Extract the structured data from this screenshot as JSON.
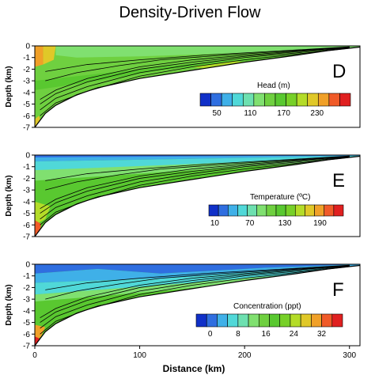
{
  "figure": {
    "title": "Density-Driven Flow"
  },
  "chart_data": [
    {
      "type": "heatmap",
      "panel": "D",
      "variable": "Head (m)",
      "xlabel": "",
      "ylabel": "Depth (km)",
      "xlim": [
        0,
        310
      ],
      "ylim": [
        -7,
        0
      ],
      "yticks": [
        0,
        -1,
        -2,
        -3,
        -4,
        -5,
        -6,
        -7
      ],
      "colorbar": {
        "title": "Head (m)",
        "range": [
          20,
          290
        ],
        "ticks": [
          50,
          110,
          170,
          230
        ],
        "colors": [
          "#1030c8",
          "#2f6ee0",
          "#3fb0e8",
          "#50d8d8",
          "#6de0b0",
          "#80e070",
          "#6fd040",
          "#59c830",
          "#77d028",
          "#b4dc28",
          "#e0c828",
          "#f0a028",
          "#f05a28",
          "#e02020"
        ]
      },
      "bottom_profile": [
        [
          0,
          -7
        ],
        [
          5,
          -6.4
        ],
        [
          10,
          -5.8
        ],
        [
          20,
          -5.1
        ],
        [
          40,
          -4.2
        ],
        [
          60,
          -3.6
        ],
        [
          100,
          -2.8
        ],
        [
          150,
          -2.1
        ],
        [
          200,
          -1.4
        ],
        [
          250,
          -0.8
        ],
        [
          280,
          -0.4
        ],
        [
          310,
          -0.1
        ]
      ],
      "contours": [
        [
          [
            5,
            -6
          ],
          [
            20,
            -4.9
          ],
          [
            50,
            -3.9
          ],
          [
            100,
            -2.6
          ],
          [
            150,
            -1.8
          ],
          [
            200,
            -1.2
          ],
          [
            250,
            -0.7
          ],
          [
            300,
            -0.2
          ]
        ],
        [
          [
            5,
            -5.5
          ],
          [
            20,
            -4.5
          ],
          [
            50,
            -3.5
          ],
          [
            100,
            -2.3
          ],
          [
            150,
            -1.6
          ],
          [
            200,
            -1.0
          ],
          [
            250,
            -0.6
          ],
          [
            300,
            -0.15
          ]
        ],
        [
          [
            5,
            -5.0
          ],
          [
            20,
            -4.1
          ],
          [
            50,
            -3.1
          ],
          [
            100,
            -2.0
          ],
          [
            150,
            -1.4
          ],
          [
            200,
            -0.9
          ],
          [
            250,
            -0.5
          ],
          [
            300,
            -0.12
          ]
        ],
        [
          [
            5,
            -4.6
          ],
          [
            20,
            -3.8
          ],
          [
            50,
            -2.8
          ],
          [
            100,
            -1.8
          ],
          [
            150,
            -1.2
          ],
          [
            200,
            -0.8
          ],
          [
            250,
            -0.45
          ],
          [
            300,
            -0.1
          ]
        ],
        [
          [
            10,
            -3.0
          ],
          [
            40,
            -2.3
          ],
          [
            80,
            -1.7
          ],
          [
            120,
            -1.2
          ],
          [
            180,
            -0.8
          ],
          [
            240,
            -0.45
          ],
          [
            300,
            -0.1
          ]
        ],
        [
          [
            10,
            -2.2
          ],
          [
            50,
            -1.6
          ],
          [
            100,
            -1.2
          ],
          [
            160,
            -0.8
          ],
          [
            230,
            -0.45
          ],
          [
            300,
            -0.08
          ]
        ]
      ]
    },
    {
      "type": "heatmap",
      "panel": "E",
      "variable": "Temperature (°C)",
      "xlabel": "",
      "ylabel": "Depth (km)",
      "xlim": [
        0,
        310
      ],
      "ylim": [
        -7,
        0
      ],
      "yticks": [
        0,
        -1,
        -2,
        -3,
        -4,
        -5,
        -6,
        -7
      ],
      "colorbar": {
        "title": "Temperature (ºC)",
        "range": [
          0,
          230
        ],
        "ticks": [
          10,
          70,
          130,
          190
        ],
        "colors": [
          "#1030c8",
          "#2f6ee0",
          "#3fb0e8",
          "#50d8d8",
          "#6de0b0",
          "#80e070",
          "#6fd040",
          "#59c830",
          "#77d028",
          "#b4dc28",
          "#e0c828",
          "#f0a028",
          "#f05a28",
          "#e02020"
        ]
      },
      "bottom_profile": [
        [
          0,
          -7
        ],
        [
          5,
          -6.4
        ],
        [
          10,
          -5.8
        ],
        [
          20,
          -5.1
        ],
        [
          40,
          -4.2
        ],
        [
          60,
          -3.6
        ],
        [
          100,
          -2.8
        ],
        [
          150,
          -2.1
        ],
        [
          200,
          -1.4
        ],
        [
          250,
          -0.8
        ],
        [
          280,
          -0.4
        ],
        [
          310,
          -0.1
        ]
      ],
      "contours": [
        [
          [
            5,
            -6
          ],
          [
            20,
            -4.9
          ],
          [
            50,
            -3.9
          ],
          [
            100,
            -2.6
          ],
          [
            150,
            -1.8
          ],
          [
            200,
            -1.2
          ],
          [
            250,
            -0.7
          ],
          [
            300,
            -0.2
          ]
        ],
        [
          [
            5,
            -5.5
          ],
          [
            20,
            -4.5
          ],
          [
            50,
            -3.5
          ],
          [
            100,
            -2.3
          ],
          [
            150,
            -1.6
          ],
          [
            200,
            -1.0
          ],
          [
            250,
            -0.6
          ],
          [
            300,
            -0.15
          ]
        ],
        [
          [
            5,
            -5.0
          ],
          [
            20,
            -4.1
          ],
          [
            50,
            -3.1
          ],
          [
            100,
            -2.0
          ],
          [
            150,
            -1.4
          ],
          [
            200,
            -0.9
          ],
          [
            250,
            -0.5
          ],
          [
            300,
            -0.12
          ]
        ],
        [
          [
            5,
            -4.6
          ],
          [
            20,
            -3.8
          ],
          [
            50,
            -2.8
          ],
          [
            100,
            -1.8
          ],
          [
            150,
            -1.2
          ],
          [
            200,
            -0.8
          ],
          [
            250,
            -0.45
          ],
          [
            300,
            -0.1
          ]
        ],
        [
          [
            10,
            -3.0
          ],
          [
            40,
            -2.3
          ],
          [
            80,
            -1.7
          ],
          [
            120,
            -1.2
          ],
          [
            180,
            -0.8
          ],
          [
            240,
            -0.45
          ],
          [
            300,
            -0.1
          ]
        ],
        [
          [
            10,
            -2.2
          ],
          [
            50,
            -1.6
          ],
          [
            100,
            -1.2
          ],
          [
            160,
            -0.8
          ],
          [
            230,
            -0.45
          ],
          [
            300,
            -0.08
          ]
        ]
      ]
    },
    {
      "type": "heatmap",
      "panel": "F",
      "variable": "Concentration (ppt)",
      "xlabel": "Distance (km)",
      "ylabel": "Depth (km)",
      "xlim": [
        0,
        310
      ],
      "ylim": [
        -7,
        0
      ],
      "xticks": [
        0,
        100,
        200,
        300
      ],
      "yticks": [
        0,
        -1,
        -2,
        -3,
        -4,
        -5,
        -6,
        -7
      ],
      "colorbar": {
        "title": "Concentration (ppt)",
        "range": [
          -4,
          38
        ],
        "ticks": [
          0,
          8,
          16,
          24,
          32
        ],
        "colors": [
          "#1030c8",
          "#2f6ee0",
          "#3fb0e8",
          "#50d8d8",
          "#6de0b0",
          "#80e070",
          "#6fd040",
          "#59c830",
          "#77d028",
          "#b4dc28",
          "#e0c828",
          "#f0a028",
          "#f05a28",
          "#e02020"
        ]
      },
      "bottom_profile": [
        [
          0,
          -7
        ],
        [
          5,
          -6.4
        ],
        [
          10,
          -5.8
        ],
        [
          20,
          -5.1
        ],
        [
          40,
          -4.2
        ],
        [
          60,
          -3.6
        ],
        [
          100,
          -2.8
        ],
        [
          150,
          -2.1
        ],
        [
          200,
          -1.4
        ],
        [
          250,
          -0.8
        ],
        [
          280,
          -0.4
        ],
        [
          310,
          -0.1
        ]
      ],
      "contours": [
        [
          [
            5,
            -6
          ],
          [
            20,
            -4.9
          ],
          [
            50,
            -3.9
          ],
          [
            100,
            -2.6
          ],
          [
            150,
            -1.8
          ],
          [
            200,
            -1.2
          ],
          [
            250,
            -0.7
          ],
          [
            300,
            -0.2
          ]
        ],
        [
          [
            5,
            -5.5
          ],
          [
            20,
            -4.5
          ],
          [
            50,
            -3.5
          ],
          [
            100,
            -2.3
          ],
          [
            150,
            -1.6
          ],
          [
            200,
            -1.0
          ],
          [
            250,
            -0.6
          ],
          [
            300,
            -0.15
          ]
        ],
        [
          [
            5,
            -5.0
          ],
          [
            20,
            -4.1
          ],
          [
            50,
            -3.1
          ],
          [
            100,
            -2.0
          ],
          [
            150,
            -1.4
          ],
          [
            200,
            -0.9
          ],
          [
            250,
            -0.5
          ],
          [
            300,
            -0.12
          ]
        ],
        [
          [
            5,
            -4.6
          ],
          [
            20,
            -3.8
          ],
          [
            50,
            -2.8
          ],
          [
            100,
            -1.8
          ],
          [
            150,
            -1.2
          ],
          [
            200,
            -0.8
          ],
          [
            250,
            -0.45
          ],
          [
            300,
            -0.1
          ]
        ],
        [
          [
            10,
            -3.0
          ],
          [
            40,
            -2.3
          ],
          [
            80,
            -1.7
          ],
          [
            120,
            -1.2
          ],
          [
            180,
            -0.8
          ],
          [
            240,
            -0.45
          ],
          [
            300,
            -0.1
          ]
        ],
        [
          [
            10,
            -2.2
          ],
          [
            50,
            -1.6
          ],
          [
            100,
            -1.2
          ],
          [
            160,
            -0.8
          ],
          [
            230,
            -0.45
          ],
          [
            300,
            -0.08
          ]
        ]
      ]
    }
  ]
}
